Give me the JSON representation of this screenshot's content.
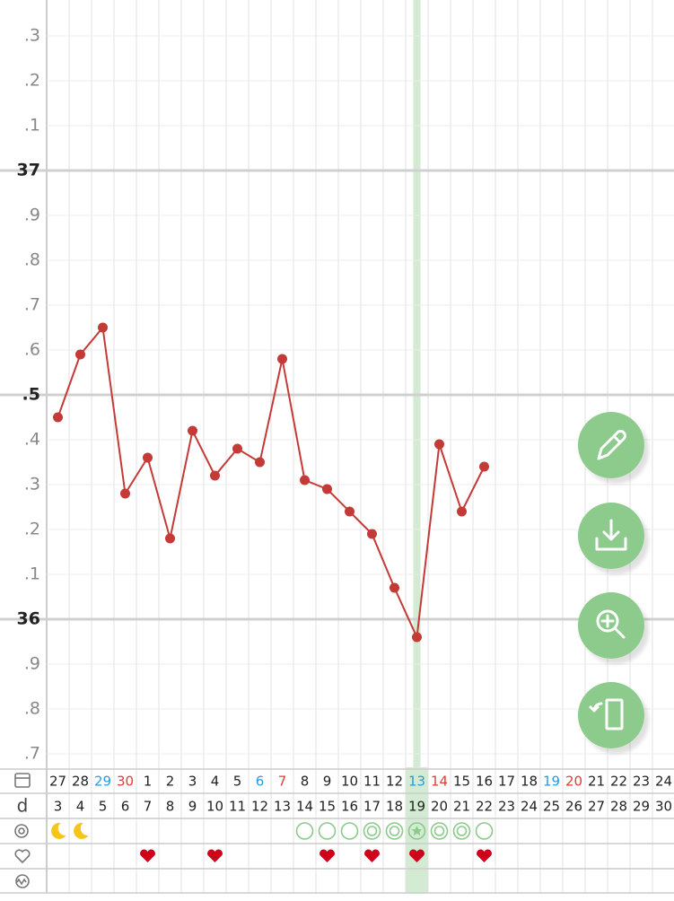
{
  "chart_data": {
    "type": "line",
    "categories": [
      "27",
      "28",
      "29",
      "30",
      "1",
      "2",
      "3",
      "4",
      "5",
      "6",
      "7",
      "8",
      "9",
      "10",
      "11",
      "12",
      "13",
      "14",
      "15",
      "16",
      "17",
      "18",
      "19",
      "20",
      "21",
      "22",
      "23",
      "24"
    ],
    "category_colors": [
      "#222",
      "#222",
      "#2a9ae0",
      "#e53935",
      "#222",
      "#222",
      "#222",
      "#222",
      "#222",
      "#2a9ae0",
      "#e53935",
      "#222",
      "#222",
      "#222",
      "#222",
      "#222",
      "#2a9ae0",
      "#e53935",
      "#222",
      "#222",
      "#222",
      "#222",
      "#2a9ae0",
      "#e53935",
      "#222",
      "#222",
      "#222",
      "#222"
    ],
    "cycle_day_label": "d",
    "cycle_days": [
      "3",
      "4",
      "5",
      "6",
      "7",
      "8",
      "9",
      "10",
      "11",
      "12",
      "13",
      "14",
      "15",
      "16",
      "17",
      "18",
      "19",
      "20",
      "21",
      "22",
      "23",
      "24",
      "25",
      "26",
      "27",
      "28",
      "29",
      "30"
    ],
    "series": [
      {
        "color": "#c43a36",
        "values": [
          36.45,
          36.59,
          36.65,
          36.28,
          36.36,
          36.18,
          36.42,
          36.32,
          36.38,
          36.35,
          36.58,
          36.31,
          36.29,
          36.24,
          36.19,
          36.07,
          35.96,
          36.39,
          36.24,
          36.34,
          null,
          null,
          null,
          null,
          null,
          null,
          null,
          null
        ]
      }
    ],
    "ylim": [
      35.67,
      37.38
    ],
    "yticks": [
      {
        "value": 37.3,
        "label": ".3"
      },
      {
        "value": 37.2,
        "label": ".2"
      },
      {
        "value": 37.1,
        "label": ".1"
      },
      37,
      {
        "value": 36.9,
        "label": ".9"
      },
      {
        "value": 36.8,
        "label": ".8"
      },
      {
        "value": 36.7,
        "label": ".7"
      },
      {
        "value": 36.6,
        "label": ".6"
      },
      {
        "value": 36.5,
        "label": ".5"
      },
      {
        "value": 36.4,
        "label": ".4"
      },
      {
        "value": 36.3,
        "label": ".3"
      },
      {
        "value": 36.2,
        "label": ".2"
      },
      {
        "value": 36.1,
        "label": ".1"
      },
      36,
      {
        "value": 35.9,
        "label": ".9"
      },
      {
        "value": 35.8,
        "label": ".8"
      },
      {
        "value": 35.7,
        "label": ".7"
      }
    ],
    "grid": true,
    "highlight_index": 16
  }
}
